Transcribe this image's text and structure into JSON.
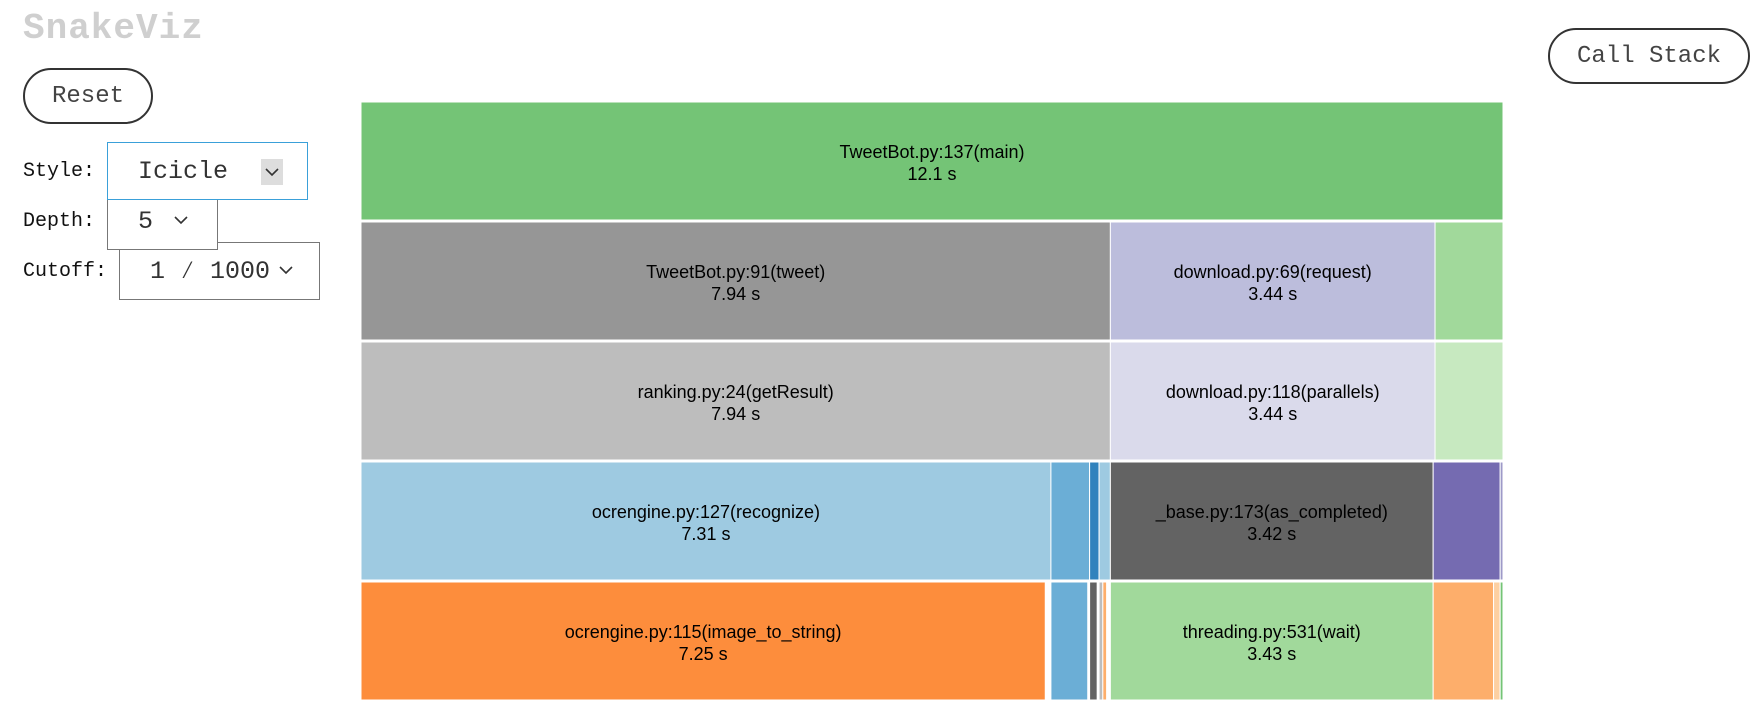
{
  "app": {
    "title": "SnakeViz"
  },
  "buttons": {
    "reset": "Reset",
    "call_stack": "Call Stack"
  },
  "controls": {
    "style": {
      "label": "Style:",
      "value": "Icicle"
    },
    "depth": {
      "label": "Depth:",
      "value": "5"
    },
    "cutoff": {
      "label": "Cutoff:",
      "value": "1 ⁄ 1000"
    }
  },
  "chart_data": {
    "type": "icicle",
    "title": "",
    "units": "s",
    "blocks": [
      {
        "name": "TweetBot.py:137(main)",
        "time": "12.1 s",
        "color": "#74c476",
        "level": 0,
        "start": 0.0,
        "end": 12.1
      },
      {
        "name": "TweetBot.py:91(tweet)",
        "time": "7.94 s",
        "color": "#969696",
        "level": 1,
        "start": 0.0,
        "end": 7.94
      },
      {
        "name": "download.py:69(request)",
        "time": "3.44 s",
        "color": "#bcbddc",
        "level": 1,
        "start": 7.94,
        "end": 11.38
      },
      {
        "name": "",
        "time": "",
        "color": "#a1d99b",
        "level": 1,
        "start": 11.38,
        "end": 12.1
      },
      {
        "name": "ranking.py:24(getResult)",
        "time": "7.94 s",
        "color": "#bdbdbd",
        "level": 2,
        "start": 0.0,
        "end": 7.94
      },
      {
        "name": "download.py:118(parallels)",
        "time": "3.44 s",
        "color": "#dadaeb",
        "level": 2,
        "start": 7.94,
        "end": 11.38
      },
      {
        "name": "",
        "time": "",
        "color": "#c7e9c0",
        "level": 2,
        "start": 11.38,
        "end": 12.1
      },
      {
        "name": "ocrengine.py:127(recognize)",
        "time": "7.31 s",
        "color": "#9ecae1",
        "level": 3,
        "start": 0.0,
        "end": 7.31
      },
      {
        "name": "",
        "time": "",
        "color": "#6baed6",
        "level": 3,
        "start": 7.31,
        "end": 7.72
      },
      {
        "name": "",
        "time": "",
        "color": "#3182bd",
        "level": 3,
        "start": 7.72,
        "end": 7.82
      },
      {
        "name": "",
        "time": "",
        "color": "#9ecae1",
        "level": 3,
        "start": 7.82,
        "end": 7.94
      },
      {
        "name": "_base.py:173(as_completed)",
        "time": "3.42 s",
        "color": "#636363",
        "level": 3,
        "start": 7.94,
        "end": 11.36
      },
      {
        "name": "",
        "time": "",
        "color": "#756bb1",
        "level": 3,
        "start": 11.36,
        "end": 12.07
      },
      {
        "name": "",
        "time": "",
        "color": "#9e9ac8",
        "level": 3,
        "start": 12.07,
        "end": 12.1
      },
      {
        "name": "ocrengine.py:115(image_to_string)",
        "time": "7.25 s",
        "color": "#fd8d3c",
        "level": 4,
        "start": 0.0,
        "end": 7.25
      },
      {
        "name": "",
        "time": "",
        "color": "#6baed6",
        "level": 4,
        "start": 7.31,
        "end": 7.7
      },
      {
        "name": "",
        "time": "",
        "color": "#636363",
        "level": 4,
        "start": 7.72,
        "end": 7.8
      },
      {
        "name": "",
        "time": "",
        "color": "#bdbdbd",
        "level": 4,
        "start": 7.82,
        "end": 7.86
      },
      {
        "name": "",
        "time": "",
        "color": "#fdae6b",
        "level": 4,
        "start": 7.86,
        "end": 7.9
      },
      {
        "name": "threading.py:531(wait)",
        "time": "3.43 s",
        "color": "#a1d99b",
        "level": 4,
        "start": 7.94,
        "end": 11.36
      },
      {
        "name": "",
        "time": "",
        "color": "#fdae6b",
        "level": 4,
        "start": 11.36,
        "end": 12.0
      },
      {
        "name": "",
        "time": "",
        "color": "#fdd0a2",
        "level": 4,
        "start": 12.0,
        "end": 12.07
      },
      {
        "name": "",
        "time": "",
        "color": "#74c476",
        "level": 4,
        "start": 12.07,
        "end": 12.1
      }
    ]
  }
}
